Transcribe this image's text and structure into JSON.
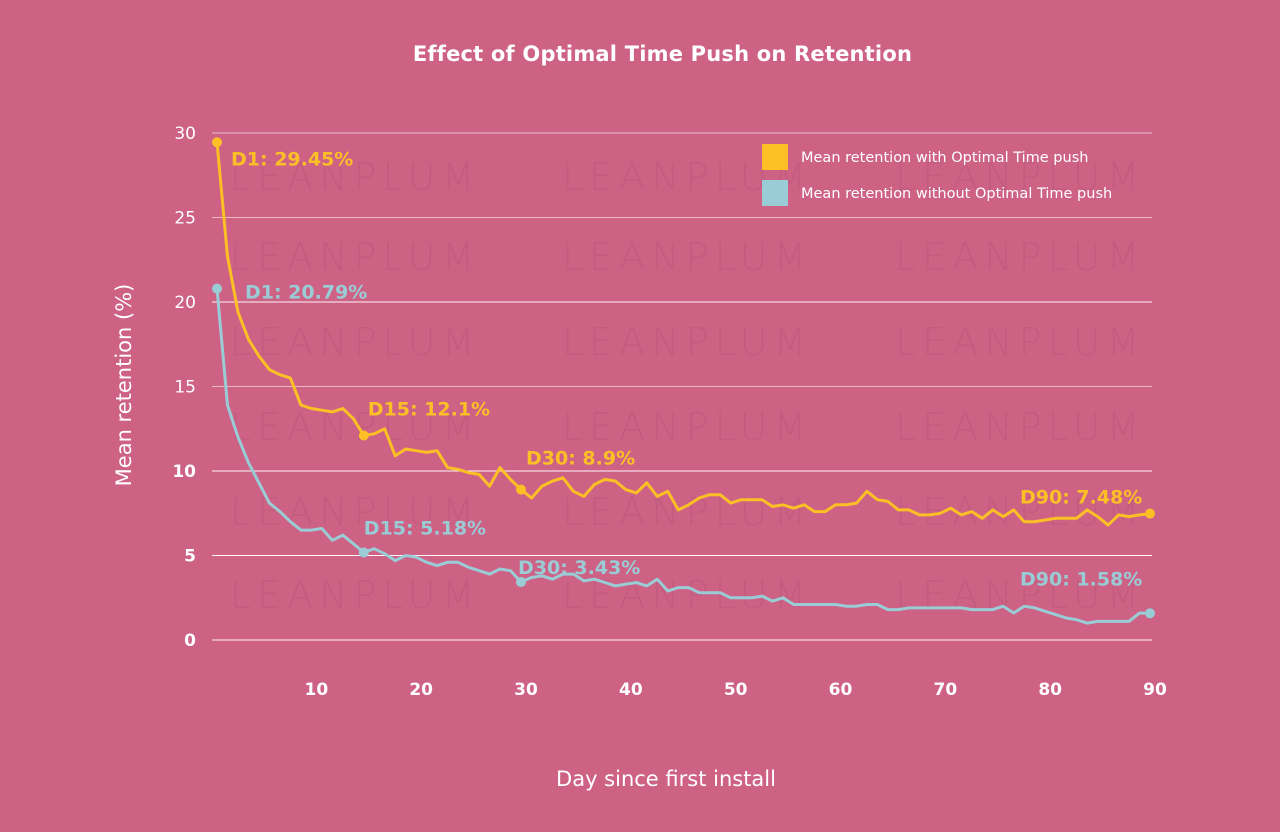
{
  "chart_data": {
    "type": "line",
    "title": "Effect of Optimal Time Push on Retention",
    "xlabel": "Day since first install",
    "ylabel": "Mean retention (%)",
    "xlim": [
      1,
      90
    ],
    "ylim": [
      0,
      30
    ],
    "xticks": [
      10,
      20,
      30,
      40,
      50,
      60,
      70,
      80,
      90
    ],
    "yticks": [
      0,
      5,
      10,
      15,
      20,
      25,
      30
    ],
    "grid": true,
    "legend_position": "top-right",
    "watermark": "LEANPLUM",
    "series": [
      {
        "name": "Mean retention with Optimal Time push",
        "color": "#fcbf25",
        "x_start": 1,
        "values": [
          29.45,
          22.7,
          19.4,
          17.8,
          16.8,
          16.0,
          15.7,
          15.5,
          13.9,
          13.7,
          13.6,
          13.5,
          13.7,
          13.1,
          12.1,
          12.2,
          12.5,
          10.9,
          11.3,
          11.2,
          11.1,
          11.2,
          10.2,
          10.1,
          9.9,
          9.8,
          9.1,
          10.2,
          9.5,
          8.9,
          8.4,
          9.1,
          9.4,
          9.6,
          8.8,
          8.5,
          9.2,
          9.5,
          9.4,
          8.9,
          8.7,
          9.3,
          8.5,
          8.8,
          7.7,
          8.0,
          8.4,
          8.6,
          8.6,
          8.1,
          8.3,
          8.3,
          8.3,
          7.9,
          8.0,
          7.8,
          8.0,
          7.6,
          7.6,
          8.0,
          8.0,
          8.1,
          8.8,
          8.3,
          8.2,
          7.7,
          7.7,
          7.4,
          7.4,
          7.5,
          7.8,
          7.4,
          7.6,
          7.2,
          7.7,
          7.3,
          7.7,
          7.0,
          7.0,
          7.1,
          7.2,
          7.2,
          7.2,
          7.7,
          7.3,
          6.8,
          7.4,
          7.3,
          7.4,
          7.48
        ],
        "annotations": [
          {
            "day": 1,
            "value": 29.45,
            "label": "D1: 29.45%"
          },
          {
            "day": 15,
            "value": 12.1,
            "label": "D15: 12.1%"
          },
          {
            "day": 30,
            "value": 8.9,
            "label": "D30: 8.9%"
          },
          {
            "day": 90,
            "value": 7.48,
            "label": "D90: 7.48%"
          }
        ]
      },
      {
        "name": "Mean retention without Optimal Time push",
        "color": "#9accd6",
        "x_start": 1,
        "values": [
          20.79,
          13.9,
          12.0,
          10.5,
          9.3,
          8.1,
          7.6,
          7.0,
          6.5,
          6.5,
          6.6,
          5.9,
          6.2,
          5.7,
          5.18,
          5.4,
          5.1,
          4.7,
          5.0,
          4.9,
          4.6,
          4.4,
          4.6,
          4.6,
          4.3,
          4.1,
          3.9,
          4.2,
          4.1,
          3.43,
          3.7,
          3.8,
          3.6,
          3.9,
          3.9,
          3.5,
          3.6,
          3.4,
          3.2,
          3.3,
          3.4,
          3.2,
          3.6,
          2.9,
          3.1,
          3.1,
          2.8,
          2.8,
          2.8,
          2.5,
          2.5,
          2.5,
          2.6,
          2.3,
          2.5,
          2.1,
          2.1,
          2.1,
          2.1,
          2.1,
          2.0,
          2.0,
          2.1,
          2.1,
          1.8,
          1.8,
          1.9,
          1.9,
          1.9,
          1.9,
          1.9,
          1.9,
          1.8,
          1.8,
          1.8,
          2.0,
          1.6,
          2.0,
          1.9,
          1.7,
          1.5,
          1.3,
          1.2,
          1.0,
          1.1,
          1.1,
          1.1,
          1.1,
          1.6,
          1.58
        ],
        "annotations": [
          {
            "day": 1,
            "value": 20.79,
            "label": "D1: 20.79%"
          },
          {
            "day": 15,
            "value": 5.18,
            "label": "D15: 5.18%"
          },
          {
            "day": 30,
            "value": 3.43,
            "label": "D30: 3.43%"
          },
          {
            "day": 90,
            "value": 1.58,
            "label": "D90: 1.58%"
          }
        ]
      }
    ]
  }
}
